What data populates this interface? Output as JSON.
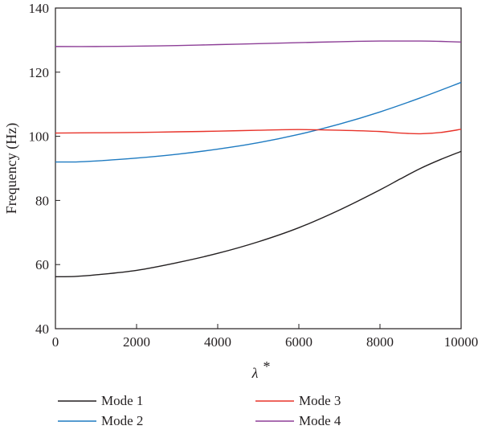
{
  "chart_data": {
    "type": "line",
    "title": "",
    "xlabel": "λ*",
    "ylabel": "Frequency (Hz)",
    "xlim": [
      0,
      10000
    ],
    "ylim": [
      40,
      140
    ],
    "xticks": [
      0,
      2000,
      4000,
      6000,
      8000,
      10000
    ],
    "yticks": [
      40,
      60,
      80,
      100,
      120,
      140
    ],
    "grid": false,
    "legend_position": "bottom",
    "series": [
      {
        "name": "Mode 1",
        "color": "#231f20",
        "points": [
          [
            0,
            56.2
          ],
          [
            500,
            56.3
          ],
          [
            1000,
            56.8
          ],
          [
            2000,
            58.2
          ],
          [
            3000,
            60.6
          ],
          [
            4000,
            63.5
          ],
          [
            5000,
            67.1
          ],
          [
            6000,
            71.5
          ],
          [
            7000,
            77.0
          ],
          [
            8000,
            83.3
          ],
          [
            8500,
            86.7
          ],
          [
            9000,
            90.0
          ],
          [
            9500,
            92.8
          ],
          [
            10000,
            95.3
          ]
        ]
      },
      {
        "name": "Mode 2",
        "color": "#1f7bc1",
        "points": [
          [
            0,
            92.0
          ],
          [
            500,
            92.0
          ],
          [
            1000,
            92.3
          ],
          [
            2000,
            93.2
          ],
          [
            3000,
            94.4
          ],
          [
            4000,
            96.0
          ],
          [
            5000,
            98.0
          ],
          [
            6000,
            100.6
          ],
          [
            7000,
            103.8
          ],
          [
            8000,
            107.6
          ],
          [
            9000,
            112.0
          ],
          [
            10000,
            116.8
          ]
        ]
      },
      {
        "name": "Mode 3",
        "color": "#e8332a",
        "points": [
          [
            0,
            101.0
          ],
          [
            1000,
            101.1
          ],
          [
            2000,
            101.2
          ],
          [
            3000,
            101.4
          ],
          [
            4000,
            101.6
          ],
          [
            5000,
            101.9
          ],
          [
            6000,
            102.1
          ],
          [
            7000,
            101.9
          ],
          [
            8000,
            101.5
          ],
          [
            8500,
            101.0
          ],
          [
            9000,
            100.8
          ],
          [
            9500,
            101.2
          ],
          [
            10000,
            102.2
          ]
        ]
      },
      {
        "name": "Mode 4",
        "color": "#8d3f97",
        "points": [
          [
            0,
            128.0
          ],
          [
            1000,
            128.0
          ],
          [
            2000,
            128.1
          ],
          [
            3000,
            128.3
          ],
          [
            4000,
            128.6
          ],
          [
            5000,
            128.9
          ],
          [
            6000,
            129.2
          ],
          [
            7000,
            129.5
          ],
          [
            8000,
            129.7
          ],
          [
            9000,
            129.7
          ],
          [
            9500,
            129.6
          ],
          [
            10000,
            129.4
          ]
        ]
      }
    ]
  }
}
